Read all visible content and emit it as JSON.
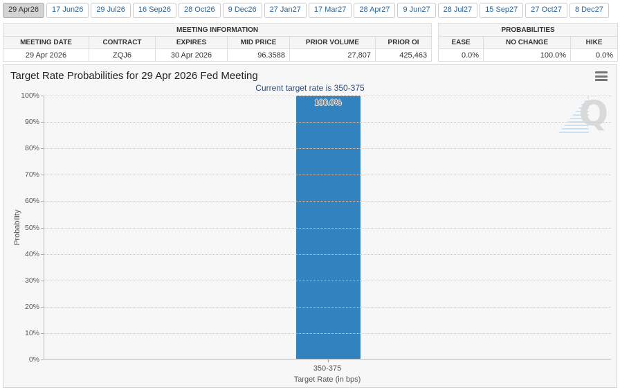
{
  "tabs": {
    "selected_index": 0,
    "items": [
      "29 Apr26",
      "17 Jun26",
      "29 Jul26",
      "16 Sep26",
      "28 Oct26",
      "9 Dec26",
      "27 Jan27",
      "17 Mar27",
      "28 Apr27",
      "9 Jun27",
      "28 Jul27",
      "15 Sep27",
      "27 Oct27",
      "8 Dec27"
    ]
  },
  "meeting_info": {
    "title": "MEETING INFORMATION",
    "columns": [
      "MEETING DATE",
      "CONTRACT",
      "EXPIRES",
      "MID PRICE",
      "PRIOR VOLUME",
      "PRIOR OI"
    ],
    "values": [
      "29 Apr 2026",
      "ZQJ6",
      "30 Apr 2026",
      "96.3588",
      "27,807",
      "425,463"
    ],
    "align": [
      "center",
      "center",
      "center",
      "right",
      "right",
      "right"
    ]
  },
  "probabilities": {
    "title": "PROBABILITIES",
    "columns": [
      "EASE",
      "NO CHANGE",
      "HIKE"
    ],
    "values": [
      "0.0%",
      "100.0%",
      "0.0%"
    ],
    "align": [
      "right",
      "right",
      "right"
    ]
  },
  "chart": {
    "menu_icon": "hamburger-icon",
    "watermark_letter": "Q"
  },
  "chart_data": {
    "type": "bar",
    "title": "Target Rate Probabilities for 29 Apr 2026 Fed Meeting",
    "subtitle": "Current target rate is 350-375",
    "categories": [
      "350-375"
    ],
    "values": [
      100.0
    ],
    "value_labels": [
      "100.0%"
    ],
    "xlabel": "Target Rate (in bps)",
    "ylabel": "Probability",
    "ylim": [
      0,
      100
    ],
    "ytick_step": 10,
    "ytick_suffix": "%",
    "grid": "dotted-horizontal",
    "legend": "none",
    "bar_color": "#3182bd"
  },
  "colors": {
    "bar_blue": "#3182bd",
    "tab_link_blue": "#2a6496",
    "selected_tab_bg": "#d4d4d4",
    "panel_bg": "#f7f7f7",
    "subtitle_navy": "#2b4a7d",
    "table_header_bg": "#f5f5f5",
    "table_border": "#dddddd"
  }
}
